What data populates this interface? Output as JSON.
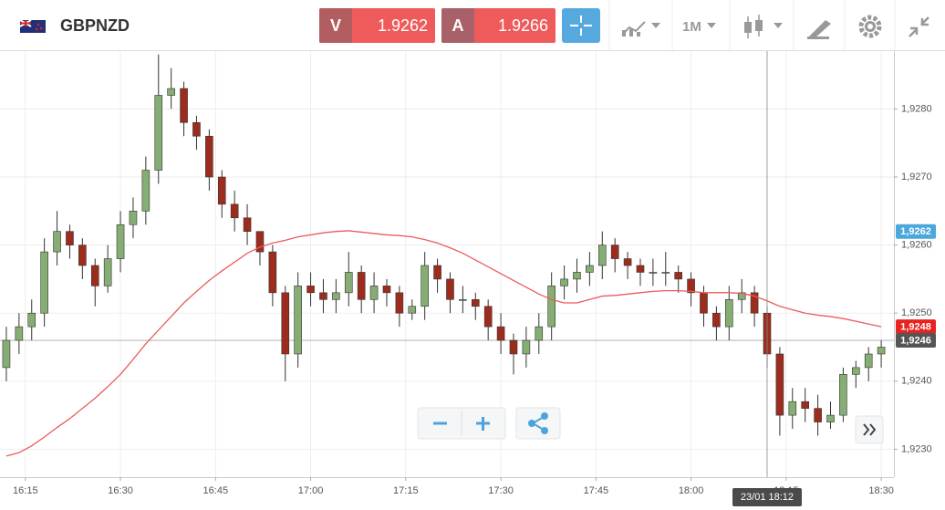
{
  "toolbar": {
    "pair": "GBPNZD",
    "bid_label": "V",
    "bid": 1.9262,
    "ask_label": "A",
    "ask": 1.9266,
    "timeframe": "1M"
  },
  "chart_data": {
    "type": "candlestick",
    "x": [
      "16:12",
      "16:14",
      "16:16",
      "16:18",
      "16:20",
      "16:22",
      "16:24",
      "16:26",
      "16:28",
      "16:30",
      "16:32",
      "16:34",
      "16:36",
      "16:38",
      "16:40",
      "16:42",
      "16:44",
      "16:46",
      "16:48",
      "16:50",
      "16:52",
      "16:54",
      "16:56",
      "16:58",
      "17:00",
      "17:02",
      "17:04",
      "17:06",
      "17:08",
      "17:10",
      "17:12",
      "17:14",
      "17:16",
      "17:18",
      "17:20",
      "17:22",
      "17:24",
      "17:26",
      "17:28",
      "17:30",
      "17:32",
      "17:34",
      "17:36",
      "17:38",
      "17:40",
      "17:42",
      "17:44",
      "17:46",
      "17:48",
      "17:50",
      "17:52",
      "17:54",
      "17:56",
      "17:58",
      "18:00",
      "18:02",
      "18:04",
      "18:06",
      "18:08",
      "18:10",
      "18:12",
      "18:14",
      "18:16",
      "18:18",
      "18:20",
      "18:22",
      "18:24",
      "18:26",
      "18:28",
      "18:30"
    ],
    "open": [
      1.9242,
      1.9246,
      1.9248,
      1.925,
      1.9259,
      1.9262,
      1.926,
      1.9257,
      1.9254,
      1.9258,
      1.9263,
      1.9265,
      1.9271,
      1.9282,
      1.9283,
      1.9278,
      1.9276,
      1.927,
      1.9266,
      1.9264,
      1.9262,
      1.9259,
      1.9253,
      1.9244,
      1.9254,
      1.9253,
      1.9252,
      1.9253,
      1.9256,
      1.9252,
      1.9254,
      1.9253,
      1.925,
      1.9251,
      1.9257,
      1.9255,
      1.9252,
      1.9252,
      1.9251,
      1.9248,
      1.9246,
      1.9244,
      1.9246,
      1.9248,
      1.9254,
      1.9255,
      1.9256,
      1.9257,
      1.926,
      1.9258,
      1.9257,
      1.9256,
      1.9256,
      1.9256,
      1.9255,
      1.9253,
      1.925,
      1.9248,
      1.9252,
      1.9253,
      1.925,
      1.9244,
      1.9235,
      1.9237,
      1.9236,
      1.9234,
      1.9235,
      1.9241,
      1.9242,
      1.9244
    ],
    "high": [
      1.9248,
      1.925,
      1.9252,
      1.9261,
      1.9265,
      1.9263,
      1.9261,
      1.9258,
      1.926,
      1.9265,
      1.9267,
      1.9273,
      1.9288,
      1.9286,
      1.9284,
      1.9279,
      1.9277,
      1.9271,
      1.9268,
      1.9266,
      1.9262,
      1.926,
      1.9254,
      1.9256,
      1.9256,
      1.9255,
      1.9255,
      1.9259,
      1.9257,
      1.9256,
      1.9255,
      1.9254,
      1.9252,
      1.9259,
      1.9258,
      1.9256,
      1.9254,
      1.9253,
      1.9252,
      1.925,
      1.9247,
      1.9248,
      1.925,
      1.9256,
      1.9257,
      1.9258,
      1.9259,
      1.9262,
      1.9261,
      1.9259,
      1.9258,
      1.9258,
      1.9259,
      1.9257,
      1.9256,
      1.9254,
      1.9251,
      1.9254,
      1.9255,
      1.9254,
      1.9251,
      1.9245,
      1.9239,
      1.9239,
      1.9238,
      1.9237,
      1.9242,
      1.9243,
      1.9245,
      1.9246
    ],
    "low": [
      1.924,
      1.9244,
      1.9246,
      1.9248,
      1.9257,
      1.9258,
      1.9255,
      1.9251,
      1.9253,
      1.9256,
      1.9261,
      1.9263,
      1.9269,
      1.928,
      1.9276,
      1.9274,
      1.9268,
      1.9264,
      1.9262,
      1.926,
      1.9257,
      1.9251,
      1.924,
      1.9242,
      1.9251,
      1.925,
      1.925,
      1.9251,
      1.925,
      1.925,
      1.9251,
      1.9248,
      1.9249,
      1.9249,
      1.9253,
      1.925,
      1.925,
      1.9249,
      1.9246,
      1.9244,
      1.9241,
      1.9242,
      1.9244,
      1.9246,
      1.9252,
      1.9253,
      1.9254,
      1.9255,
      1.9256,
      1.9255,
      1.9254,
      1.9254,
      1.9254,
      1.9253,
      1.9251,
      1.9248,
      1.9246,
      1.9246,
      1.925,
      1.9248,
      1.9242,
      1.9232,
      1.9233,
      1.9234,
      1.9232,
      1.9233,
      1.9234,
      1.9239,
      1.924,
      1.9242
    ],
    "close": [
      1.9246,
      1.9248,
      1.925,
      1.9259,
      1.9262,
      1.926,
      1.9257,
      1.9254,
      1.9258,
      1.9263,
      1.9265,
      1.9271,
      1.9282,
      1.9283,
      1.9278,
      1.9276,
      1.927,
      1.9266,
      1.9264,
      1.9262,
      1.9259,
      1.9253,
      1.9244,
      1.9254,
      1.9253,
      1.9252,
      1.9253,
      1.9256,
      1.9252,
      1.9254,
      1.9253,
      1.925,
      1.9251,
      1.9257,
      1.9255,
      1.9252,
      1.9252,
      1.9251,
      1.9248,
      1.9246,
      1.9244,
      1.9246,
      1.9248,
      1.9254,
      1.9255,
      1.9256,
      1.9257,
      1.926,
      1.9258,
      1.9257,
      1.9256,
      1.9256,
      1.9256,
      1.9255,
      1.9253,
      1.925,
      1.9248,
      1.9252,
      1.9253,
      1.925,
      1.9244,
      1.9235,
      1.9237,
      1.9236,
      1.9234,
      1.9235,
      1.9241,
      1.9242,
      1.9244,
      1.9245
    ],
    "up_color": "#86ad73",
    "down_color": "#9c2d1e",
    "ma": {
      "color": "#ec5b5b",
      "values": [
        1.9229,
        1.92295,
        1.92305,
        1.92318,
        1.92332,
        1.92345,
        1.9236,
        1.92375,
        1.92392,
        1.9241,
        1.92432,
        1.92455,
        1.92475,
        1.92495,
        1.92515,
        1.92532,
        1.92548,
        1.92562,
        1.92575,
        1.92588,
        1.92597,
        1.92603,
        1.92607,
        1.92612,
        1.92615,
        1.92618,
        1.9262,
        1.92621,
        1.92619,
        1.92617,
        1.92615,
        1.92614,
        1.92612,
        1.92608,
        1.92603,
        1.92596,
        1.92588,
        1.92578,
        1.92568,
        1.92558,
        1.92548,
        1.92538,
        1.92528,
        1.9252,
        1.92515,
        1.92515,
        1.9252,
        1.92525,
        1.92526,
        1.92528,
        1.9253,
        1.92532,
        1.92533,
        1.92533,
        1.92532,
        1.9253,
        1.9253,
        1.9253,
        1.92529,
        1.92525,
        1.92518,
        1.9251,
        1.92505,
        1.925,
        1.92497,
        1.92495,
        1.92492,
        1.92488,
        1.92484,
        1.9248
      ]
    },
    "xlim": [
      "16:11",
      "18:32"
    ],
    "xticks": [
      "16:15",
      "16:30",
      "16:45",
      "17:00",
      "17:15",
      "17:30",
      "17:45",
      "18:00",
      "18:15",
      "18:30"
    ],
    "ylim": [
      1.92259,
      1.92885
    ],
    "yticks": [
      {
        "value": 1.923,
        "label": "1,9230"
      },
      {
        "value": 1.924,
        "label": "1,9240"
      },
      {
        "value": 1.925,
        "label": "1,9250"
      },
      {
        "value": 1.926,
        "label": "1,9260"
      },
      {
        "value": 1.927,
        "label": "1,9270"
      },
      {
        "value": 1.928,
        "label": "1,9280"
      }
    ],
    "grid": true,
    "price_markers": [
      {
        "value": 1.9262,
        "label": "1,9262",
        "color": "#4ba8dc"
      },
      {
        "value": 1.9248,
        "label": "1,9248",
        "color": "#e8231f"
      },
      {
        "value": 1.9246,
        "label": "1,9246",
        "color": "#555555"
      }
    ],
    "crosshair": {
      "x": "18:12",
      "label": "23/01 18:12"
    }
  }
}
